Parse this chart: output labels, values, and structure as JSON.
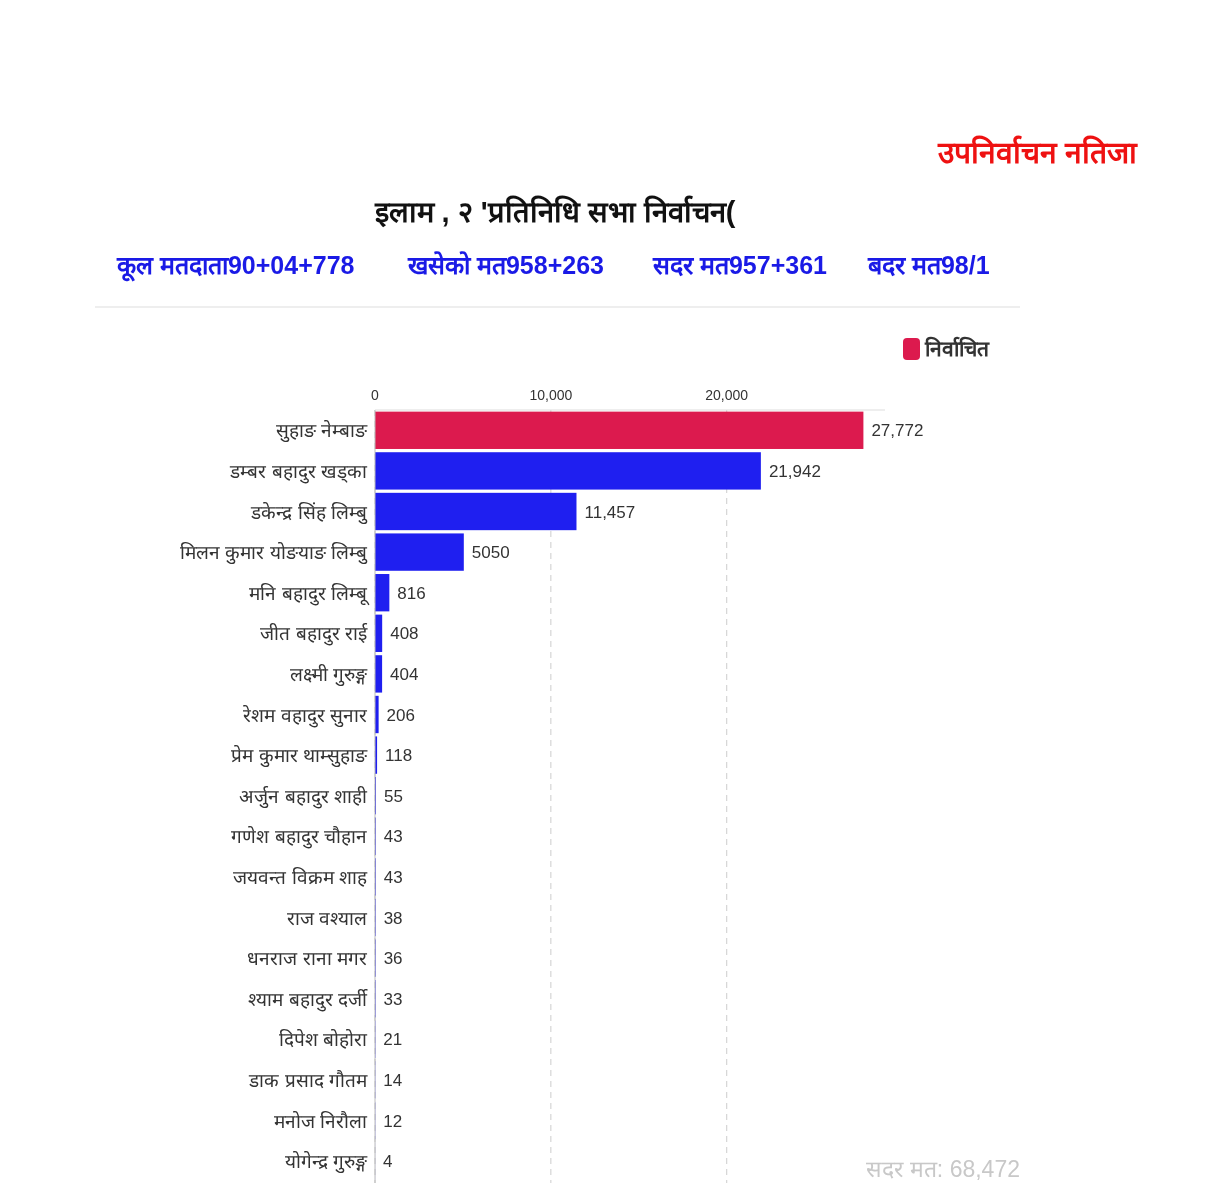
{
  "chart_data": {
    "type": "bar",
    "orientation": "horizontal",
    "title": "इलाम , २ 'प्रतिनिधि सभा निर्वाचन(",
    "categories": [
      "सुहाङ नेम्बाङ",
      "डम्बर बहादुर खड्का",
      "डकेन्द्र सिंह लिम्बु",
      "मिलन कुमार योङयाङ लिम्बु",
      "मनि बहादुर लिम्बू",
      "जीत बहादुर राई",
      "लक्ष्मी गुरुङ्ग",
      "रेशम वहादुर सुनार",
      "प्रेम कुमार थाम्सुहाङ",
      "अर्जुन बहादुर शाही",
      "गणेश बहादुर चौहान",
      "जयवन्त विक्रम शाह",
      "राज वश्याल",
      "धनराज राना मगर",
      "श्याम बहादुर दर्जी",
      "दिपेश बोहोरा",
      "डाक प्रसाद गौतम",
      "मनोज निरौला",
      "योगेन्द्र गुरुङ्ग"
    ],
    "series": [
      {
        "name": "निर्वाचित",
        "color": "#dc1a4e",
        "values": [
          27772,
          null,
          null,
          null,
          null,
          null,
          null,
          null,
          null,
          null,
          null,
          null,
          null,
          null,
          null,
          null,
          null,
          null,
          null
        ],
        "value_labels": [
          "27,772",
          null,
          null,
          null,
          null,
          null,
          null,
          null,
          null,
          null,
          null,
          null,
          null,
          null,
          null,
          null,
          null,
          null,
          null
        ]
      },
      {
        "color": "#1f1ff0",
        "values": [
          null,
          21942,
          11457,
          5050,
          816,
          408,
          404,
          206,
          118,
          55,
          43,
          43,
          38,
          36,
          33,
          21,
          14,
          12,
          4
        ],
        "value_labels": [
          null,
          "21,942",
          "11,457",
          "5050",
          "816",
          "408",
          "404",
          "206",
          "118",
          "55",
          "43",
          "43",
          "38",
          "36",
          "33",
          "21",
          "14",
          "12",
          "4"
        ]
      }
    ],
    "xlim": [
      0,
      29000
    ],
    "xticks": [
      0,
      {
        "value": 10000,
        "label": "10,000"
      },
      {
        "value": 20000,
        "label": "20,000"
      }
    ],
    "grid": "x",
    "legend": "top right",
    "annotations": [
      "उपनिर्वाचन नतिजा",
      "कूल मतदाता90+04+778",
      "खसेको मत958+263",
      "सदर मत957+361",
      "बदर मत98/1",
      "सदर मत: 68,472"
    ]
  }
}
